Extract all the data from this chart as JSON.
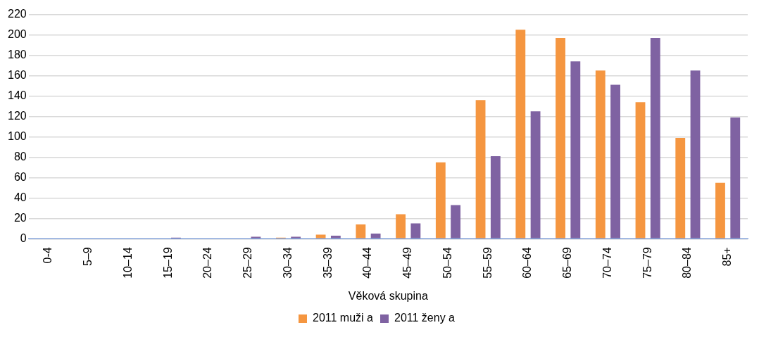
{
  "chart_data": {
    "type": "bar",
    "xlabel": "Věková skupina",
    "categories": [
      "0-4",
      "5–9",
      "10–14",
      "15–19",
      "20–24",
      "25–29",
      "30–34",
      "35–39",
      "40–44",
      "45–49",
      "50–54",
      "55–59",
      "60–64",
      "65–69",
      "70–74",
      "75–79",
      "80–84",
      "85+"
    ],
    "series": [
      {
        "name": "2011 muži a",
        "color": "#f59640",
        "values": [
          0,
          0,
          0,
          0,
          0,
          0,
          1,
          4,
          14,
          24,
          75,
          136,
          205,
          197,
          165,
          134,
          99,
          55
        ]
      },
      {
        "name": "2011 ženy a",
        "color": "#7f62a2",
        "values": [
          0,
          0,
          0,
          1,
          0,
          2,
          2,
          3,
          5,
          15,
          33,
          81,
          125,
          174,
          151,
          197,
          165,
          119
        ]
      }
    ],
    "ylim": [
      0,
      220
    ],
    "yticks": [
      0,
      20,
      40,
      60,
      80,
      100,
      120,
      140,
      160,
      180,
      200,
      220
    ],
    "grid": "y",
    "legend": "bottom"
  }
}
